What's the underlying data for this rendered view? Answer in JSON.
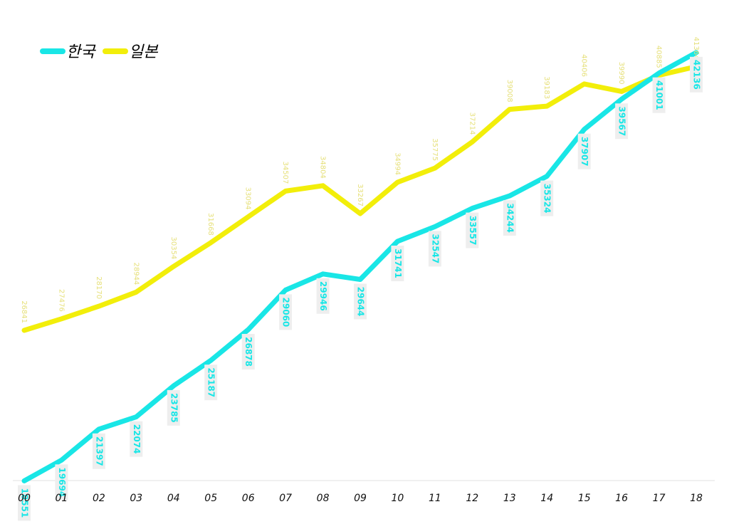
{
  "chart_data": {
    "type": "line",
    "title": "",
    "xlabel": "",
    "ylabel": "",
    "categories": [
      "00",
      "01",
      "02",
      "03",
      "04",
      "05",
      "06",
      "07",
      "08",
      "09",
      "10",
      "11",
      "12",
      "13",
      "14",
      "15",
      "16",
      "17",
      "18"
    ],
    "series": [
      {
        "name": "한국",
        "color": "#19e6e6",
        "values": [
          18551,
          19694,
          21397,
          22074,
          23785,
          25187,
          26878,
          29060,
          29946,
          29644,
          31741,
          32547,
          33557,
          34244,
          35324,
          37907,
          39567,
          41001,
          42136
        ]
      },
      {
        "name": "일본",
        "color": "#f2ee0a",
        "values": [
          26841,
          27476,
          28170,
          28944,
          30354,
          31668,
          33094,
          34507,
          34804,
          33267,
          34994,
          35775,
          37214,
          39008,
          39183,
          40406,
          39990,
          40885,
          41364
        ]
      }
    ],
    "ylim": [
      17000,
      43500
    ],
    "grid": false,
    "legend": "top-left"
  }
}
